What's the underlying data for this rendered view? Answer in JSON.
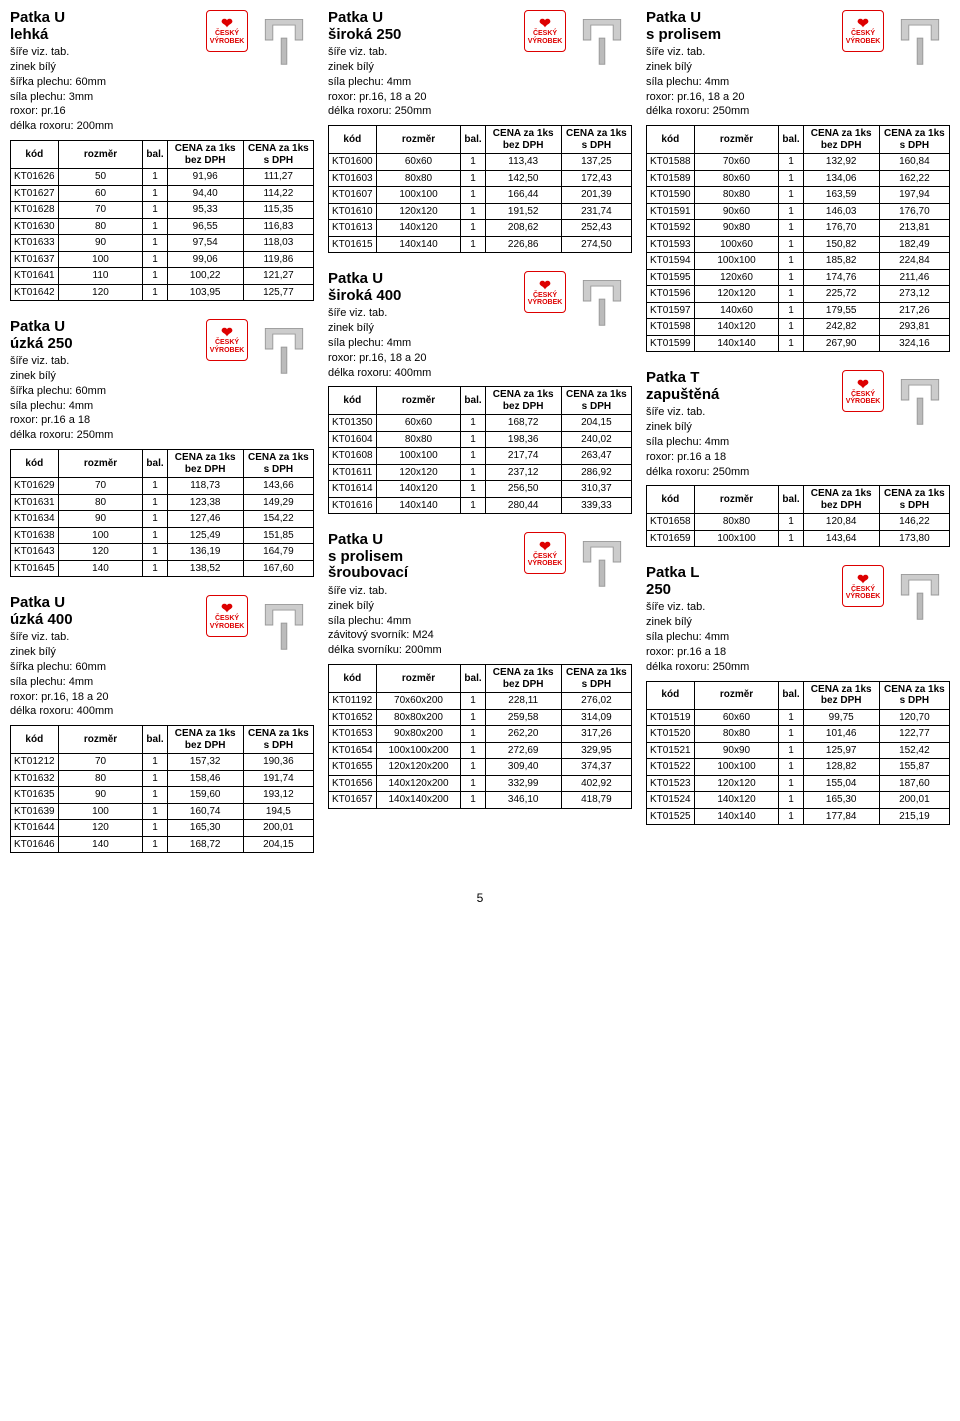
{
  "page_number": "5",
  "badge": {
    "line1": "ČESKÝ",
    "line2": "VÝROBEK"
  },
  "col_headers": {
    "kod": "kód",
    "rozmer": "rozměr",
    "bal": "bal.",
    "cena_bez": "CENA za 1ks bez DPH",
    "cena_s": "CENA za 1ks s DPH",
    "cena_bez_alt": "CENA za 1ks bez DPH",
    "cena_s_alt": "CENA za 1ks s DPH"
  },
  "sections": [
    {
      "col": 0,
      "title": "Patka  U\nlehká",
      "specs": [
        "šíře viz. tab.",
        "zinek bílý",
        "šířka plechu: 60mm",
        "síla plechu: 3mm",
        "roxor: pr.16",
        "délka roxoru: 200mm"
      ],
      "rows": [
        [
          "KT01626",
          "50",
          "1",
          "91,96",
          "111,27"
        ],
        [
          "KT01627",
          "60",
          "1",
          "94,40",
          "114,22"
        ],
        [
          "KT01628",
          "70",
          "1",
          "95,33",
          "115,35"
        ],
        [
          "KT01630",
          "80",
          "1",
          "96,55",
          "116,83"
        ],
        [
          "KT01633",
          "90",
          "1",
          "97,54",
          "118,03"
        ],
        [
          "KT01637",
          "100",
          "1",
          "99,06",
          "119,86"
        ],
        [
          "KT01641",
          "110",
          "1",
          "100,22",
          "121,27"
        ],
        [
          "KT01642",
          "120",
          "1",
          "103,95",
          "125,77"
        ]
      ]
    },
    {
      "col": 0,
      "title": "Patka  U\núzká 250",
      "specs": [
        "šíře viz. tab.",
        "zinek bílý",
        "šířka plechu: 60mm",
        "síla plechu: 4mm",
        "roxor: pr.16 a 18",
        "délka roxoru: 250mm"
      ],
      "rows": [
        [
          "KT01629",
          "70",
          "1",
          "118,73",
          "143,66"
        ],
        [
          "KT01631",
          "80",
          "1",
          "123,38",
          "149,29"
        ],
        [
          "KT01634",
          "90",
          "1",
          "127,46",
          "154,22"
        ],
        [
          "KT01638",
          "100",
          "1",
          "125,49",
          "151,85"
        ],
        [
          "KT01643",
          "120",
          "1",
          "136,19",
          "164,79"
        ],
        [
          "KT01645",
          "140",
          "1",
          "138,52",
          "167,60"
        ]
      ]
    },
    {
      "col": 0,
      "title": "Patka  U\núzká 400",
      "specs": [
        "šíře viz. tab.",
        "zinek bílý",
        "šířka plechu: 60mm",
        "síla plechu: 4mm",
        "roxor: pr.16, 18 a 20",
        "délka roxoru: 400mm"
      ],
      "rows": [
        [
          "KT01212",
          "70",
          "1",
          "157,32",
          "190,36"
        ],
        [
          "KT01632",
          "80",
          "1",
          "158,46",
          "191,74"
        ],
        [
          "KT01635",
          "90",
          "1",
          "159,60",
          "193,12"
        ],
        [
          "KT01639",
          "100",
          "1",
          "160,74",
          "194,5"
        ],
        [
          "KT01644",
          "120",
          "1",
          "165,30",
          "200,01"
        ],
        [
          "KT01646",
          "140",
          "1",
          "168,72",
          "204,15"
        ]
      ]
    },
    {
      "col": 1,
      "title": "Patka  U\nširoká 250",
      "specs": [
        "šíře viz. tab.",
        "zinek bílý",
        "síla plechu: 4mm",
        "roxor: pr.16, 18 a 20",
        "délka roxoru: 250mm"
      ],
      "rows": [
        [
          "KT01600",
          "60x60",
          "1",
          "113,43",
          "137,25"
        ],
        [
          "KT01603",
          "80x80",
          "1",
          "142,50",
          "172,43"
        ],
        [
          "KT01607",
          "100x100",
          "1",
          "166,44",
          "201,39"
        ],
        [
          "KT01610",
          "120x120",
          "1",
          "191,52",
          "231,74"
        ],
        [
          "KT01613",
          "140x120",
          "1",
          "208,62",
          "252,43"
        ],
        [
          "KT01615",
          "140x140",
          "1",
          "226,86",
          "274,50"
        ]
      ]
    },
    {
      "col": 1,
      "title": "Patka  U\nširoká 400",
      "specs": [
        "šíře viz. tab.",
        "zinek bílý",
        "síla plechu: 4mm",
        "roxor: pr.16, 18 a 20",
        "délka roxoru: 400mm"
      ],
      "rows": [
        [
          "KT01350",
          "60x60",
          "1",
          "168,72",
          "204,15"
        ],
        [
          "KT01604",
          "80x80",
          "1",
          "198,36",
          "240,02"
        ],
        [
          "KT01608",
          "100x100",
          "1",
          "217,74",
          "263,47"
        ],
        [
          "KT01611",
          "120x120",
          "1",
          "237,12",
          "286,92"
        ],
        [
          "KT01614",
          "140x120",
          "1",
          "256,50",
          "310,37"
        ],
        [
          "KT01616",
          "140x140",
          "1",
          "280,44",
          "339,33"
        ]
      ]
    },
    {
      "col": 1,
      "title": "Patka  U\ns prolisem\nšroubovací",
      "specs": [
        "šíře viz. tab.",
        "zinek bílý",
        "síla plechu: 4mm",
        "závitový svorník: M24",
        "délka svorníku: 200mm"
      ],
      "rows": [
        [
          "KT01192",
          "70x60x200",
          "1",
          "228,11",
          "276,02"
        ],
        [
          "KT01652",
          "80x80x200",
          "1",
          "259,58",
          "314,09"
        ],
        [
          "KT01653",
          "90x80x200",
          "1",
          "262,20",
          "317,26"
        ],
        [
          "KT01654",
          "100x100x200",
          "1",
          "272,69",
          "329,95"
        ],
        [
          "KT01655",
          "120x120x200",
          "1",
          "309,40",
          "374,37"
        ],
        [
          "KT01656",
          "140x120x200",
          "1",
          "332,99",
          "402,92"
        ],
        [
          "KT01657",
          "140x140x200",
          "1",
          "346,10",
          "418,79"
        ]
      ]
    },
    {
      "col": 2,
      "title": "Patka  U\ns prolisem",
      "specs": [
        "šíře viz. tab.",
        "zinek bílý",
        "síla plechu: 4mm",
        "roxor: pr.16, 18 a 20",
        "délka roxoru: 250mm"
      ],
      "rows": [
        [
          "KT01588",
          "70x60",
          "1",
          "132,92",
          "160,84"
        ],
        [
          "KT01589",
          "80x60",
          "1",
          "134,06",
          "162,22"
        ],
        [
          "KT01590",
          "80x80",
          "1",
          "163,59",
          "197,94"
        ],
        [
          "KT01591",
          "90x60",
          "1",
          "146,03",
          "176,70"
        ],
        [
          "KT01592",
          "90x80",
          "1",
          "176,70",
          "213,81"
        ],
        [
          "KT01593",
          "100x60",
          "1",
          "150,82",
          "182,49"
        ],
        [
          "KT01594",
          "100x100",
          "1",
          "185,82",
          "224,84"
        ],
        [
          "KT01595",
          "120x60",
          "1",
          "174,76",
          "211,46"
        ],
        [
          "KT01596",
          "120x120",
          "1",
          "225,72",
          "273,12"
        ],
        [
          "KT01597",
          "140x60",
          "1",
          "179,55",
          "217,26"
        ],
        [
          "KT01598",
          "140x120",
          "1",
          "242,82",
          "293,81"
        ],
        [
          "KT01599",
          "140x140",
          "1",
          "267,90",
          "324,16"
        ]
      ]
    },
    {
      "col": 2,
      "title": "Patka  T\nzapuštěná",
      "specs": [
        "šíře viz. tab.",
        "zinek bílý",
        "síla plechu: 4mm",
        "roxor: pr.16 a 18",
        "délka roxoru: 250mm"
      ],
      "rows": [
        [
          "KT01658",
          "80x80",
          "1",
          "120,84",
          "146,22"
        ],
        [
          "KT01659",
          "100x100",
          "1",
          "143,64",
          "173,80"
        ]
      ]
    },
    {
      "col": 2,
      "title": "Patka  L\n250",
      "specs": [
        "šíře viz. tab.",
        "zinek bílý",
        "síla plechu: 4mm",
        "roxor: pr.16 a 18",
        "délka roxoru: 250mm"
      ],
      "rows": [
        [
          "KT01519",
          "60x60",
          "1",
          "99,75",
          "120,70"
        ],
        [
          "KT01520",
          "80x80",
          "1",
          "101,46",
          "122,77"
        ],
        [
          "KT01521",
          "90x90",
          "1",
          "125,97",
          "152,42"
        ],
        [
          "KT01522",
          "100x100",
          "1",
          "128,82",
          "155,87"
        ],
        [
          "KT01523",
          "120x120",
          "1",
          "155,04",
          "187,60"
        ],
        [
          "KT01524",
          "140x120",
          "1",
          "165,30",
          "200,01"
        ],
        [
          "KT01525",
          "140x140",
          "1",
          "177,84",
          "215,19"
        ]
      ]
    }
  ]
}
